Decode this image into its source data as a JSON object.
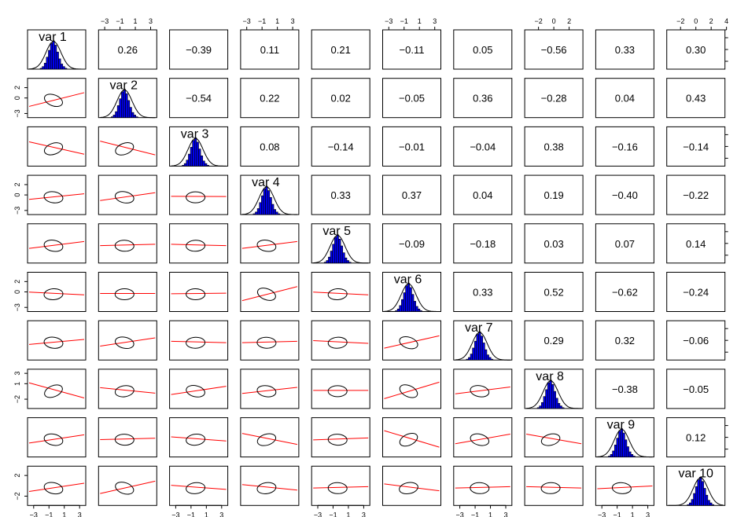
{
  "chart_data": {
    "type": "scatter-matrix",
    "title": "",
    "variables": [
      "var 1",
      "var 2",
      "var 3",
      "var 4",
      "var 5",
      "var 6",
      "var 7",
      "var 8",
      "var 9",
      "var 10"
    ],
    "correlations": [
      [
        null,
        "0.26",
        "−0.39",
        "0.11",
        "0.21",
        "−0.11",
        "0.05",
        "−0.56",
        "0.33",
        "0.30"
      ],
      [
        null,
        null,
        "−0.54",
        "0.22",
        "0.02",
        "−0.05",
        "0.36",
        "−0.28",
        "0.04",
        "0.43"
      ],
      [
        null,
        null,
        null,
        "0.08",
        "−0.14",
        "−0.01",
        "−0.04",
        "0.38",
        "−0.16",
        "−0.14"
      ],
      [
        null,
        null,
        null,
        null,
        "0.33",
        "0.37",
        "0.04",
        "0.19",
        "−0.40",
        "−0.22"
      ],
      [
        null,
        null,
        null,
        null,
        null,
        "−0.09",
        "−0.18",
        "0.03",
        "0.07",
        "0.14"
      ],
      [
        null,
        null,
        null,
        null,
        null,
        null,
        "0.33",
        "0.52",
        "−0.62",
        "−0.24"
      ],
      [
        null,
        null,
        null,
        null,
        null,
        null,
        null,
        "0.29",
        "0.32",
        "−0.06"
      ],
      [
        null,
        null,
        null,
        null,
        null,
        null,
        null,
        null,
        "−0.38",
        "−0.05"
      ],
      [
        null,
        null,
        null,
        null,
        null,
        null,
        null,
        null,
        null,
        "0.12"
      ],
      [
        null,
        null,
        null,
        null,
        null,
        null,
        null,
        null,
        null,
        null
      ]
    ],
    "colors": {
      "histogram": "#0000ee",
      "fit_line": "#ff0000",
      "ellipse": "#000000",
      "frame": "#000000"
    },
    "axes": {
      "top": [
        {
          "col": 1,
          "ticks": [
            -3,
            -1,
            1,
            3
          ],
          "labels": [
            "−3",
            "−1",
            "1",
            "3"
          ]
        },
        {
          "col": 3,
          "ticks": [
            -3,
            -1,
            1,
            3
          ],
          "labels": [
            "−3",
            "−1",
            "1",
            "3"
          ]
        },
        {
          "col": 5,
          "ticks": [
            -3,
            -1,
            1,
            3
          ],
          "labels": [
            "−3",
            "−1",
            "1",
            "3"
          ]
        },
        {
          "col": 7,
          "ticks": [
            -2,
            0,
            2
          ],
          "labels": [
            "−2",
            "0",
            "2"
          ]
        },
        {
          "col": 9,
          "ticks": [
            -2,
            0,
            2,
            4
          ],
          "labels": [
            "−2",
            "0",
            "2",
            "4"
          ]
        }
      ],
      "bottom": [
        {
          "col": 0,
          "ticks": [
            -3,
            -1,
            1,
            3
          ],
          "labels": [
            "−3",
            "−1",
            "1",
            "3"
          ]
        },
        {
          "col": 2,
          "ticks": [
            -3,
            -1,
            1,
            3
          ],
          "labels": [
            "−3",
            "−1",
            "1",
            "3"
          ]
        },
        {
          "col": 4,
          "ticks": [
            -3,
            -1,
            1,
            3
          ],
          "labels": [
            "−3",
            "−1",
            "1",
            "3"
          ]
        },
        {
          "col": 6,
          "ticks": [
            -3,
            -1,
            1,
            3
          ],
          "labels": [
            "−3",
            "−1",
            "1",
            "3"
          ]
        },
        {
          "col": 8,
          "ticks": [
            -3,
            -1,
            1,
            3
          ],
          "labels": [
            "−3",
            "−1",
            "1",
            "3"
          ]
        }
      ],
      "left": [
        {
          "row": 1,
          "ticks": [
            -3,
            0,
            2
          ],
          "labels": [
            "−3",
            "0",
            "2"
          ]
        },
        {
          "row": 3,
          "ticks": [
            -3,
            0,
            2
          ],
          "labels": [
            "−3",
            "0",
            "2"
          ]
        },
        {
          "row": 5,
          "ticks": [
            -3,
            0,
            2
          ],
          "labels": [
            "−3",
            "0",
            "2"
          ]
        },
        {
          "row": 7,
          "ticks": [
            -2,
            1,
            3
          ],
          "labels": [
            "−2",
            "1",
            "3"
          ]
        },
        {
          "row": 9,
          "ticks": [
            -2,
            2
          ],
          "labels": [
            "−2",
            "2"
          ]
        }
      ],
      "right": [
        {
          "row": 0,
          "ticks": 3,
          "labels": [
            "",
            "",
            ""
          ]
        },
        {
          "row": 2,
          "ticks": 3,
          "labels": [
            "",
            "",
            ""
          ]
        },
        {
          "row": 4,
          "ticks": 3,
          "labels": [
            "",
            "",
            ""
          ]
        },
        {
          "row": 6,
          "ticks": 3,
          "labels": [
            "",
            "",
            ""
          ]
        },
        {
          "row": 8,
          "ticks": 3,
          "labels": [
            "",
            "",
            ""
          ]
        }
      ]
    },
    "lower_panels": {
      "fit_lines": {
        "1,0": [
          0.0,
          0.5
        ],
        "2,0": [
          0.0,
          -0.45
        ],
        "2,1": [
          0.0,
          -0.5
        ],
        "3,0": [
          -0.05,
          0.2
        ],
        "3,1": [
          -0.05,
          0.28
        ],
        "3,2": [
          0.05,
          0.0
        ],
        "4,0": [
          0.0,
          0.25
        ],
        "4,1": [
          0.0,
          0.05
        ],
        "4,2": [
          0.0,
          -0.05
        ],
        "4,3": [
          0.0,
          0.25
        ],
        "5,0": [
          0.0,
          -0.1
        ],
        "5,1": [
          0.0,
          0.0
        ],
        "5,2": [
          0.0,
          0.02
        ],
        "5,3": [
          -0.1,
          0.5
        ],
        "5,4": [
          0.0,
          -0.1
        ],
        "6,0": [
          0.0,
          0.18
        ],
        "6,1": [
          0.0,
          0.3
        ],
        "6,2": [
          0.0,
          -0.05
        ],
        "6,3": [
          0.0,
          0.05
        ],
        "6,4": [
          0.0,
          -0.1
        ],
        "6,5": [
          0.0,
          0.45
        ],
        "7,0": [
          0.0,
          -0.55
        ],
        "7,1": [
          0.0,
          -0.2
        ],
        "7,2": [
          0.0,
          0.3
        ],
        "7,3": [
          0.0,
          0.22
        ],
        "7,4": [
          0.0,
          0.0
        ],
        "7,5": [
          0.0,
          0.6
        ],
        "7,6": [
          0.0,
          0.25
        ],
        "8,0": [
          0.0,
          0.3
        ],
        "8,1": [
          0.0,
          0.05
        ],
        "8,2": [
          0.0,
          -0.15
        ],
        "8,3": [
          0.0,
          -0.4
        ],
        "8,4": [
          0.0,
          0.07
        ],
        "8,5": [
          0.0,
          -0.6
        ],
        "8,6": [
          0.0,
          0.35
        ],
        "8,7": [
          0.0,
          -0.35
        ],
        "9,0": [
          0.0,
          0.3
        ],
        "9,1": [
          0.0,
          0.45
        ],
        "9,2": [
          0.0,
          -0.15
        ],
        "9,3": [
          0.0,
          -0.2
        ],
        "9,4": [
          0.0,
          0.05
        ],
        "9,5": [
          0.0,
          -0.25
        ],
        "9,6": [
          0.0,
          0.05
        ],
        "9,7": [
          0.0,
          -0.05
        ],
        "9,8": [
          0.0,
          0.1
        ]
      }
    }
  }
}
